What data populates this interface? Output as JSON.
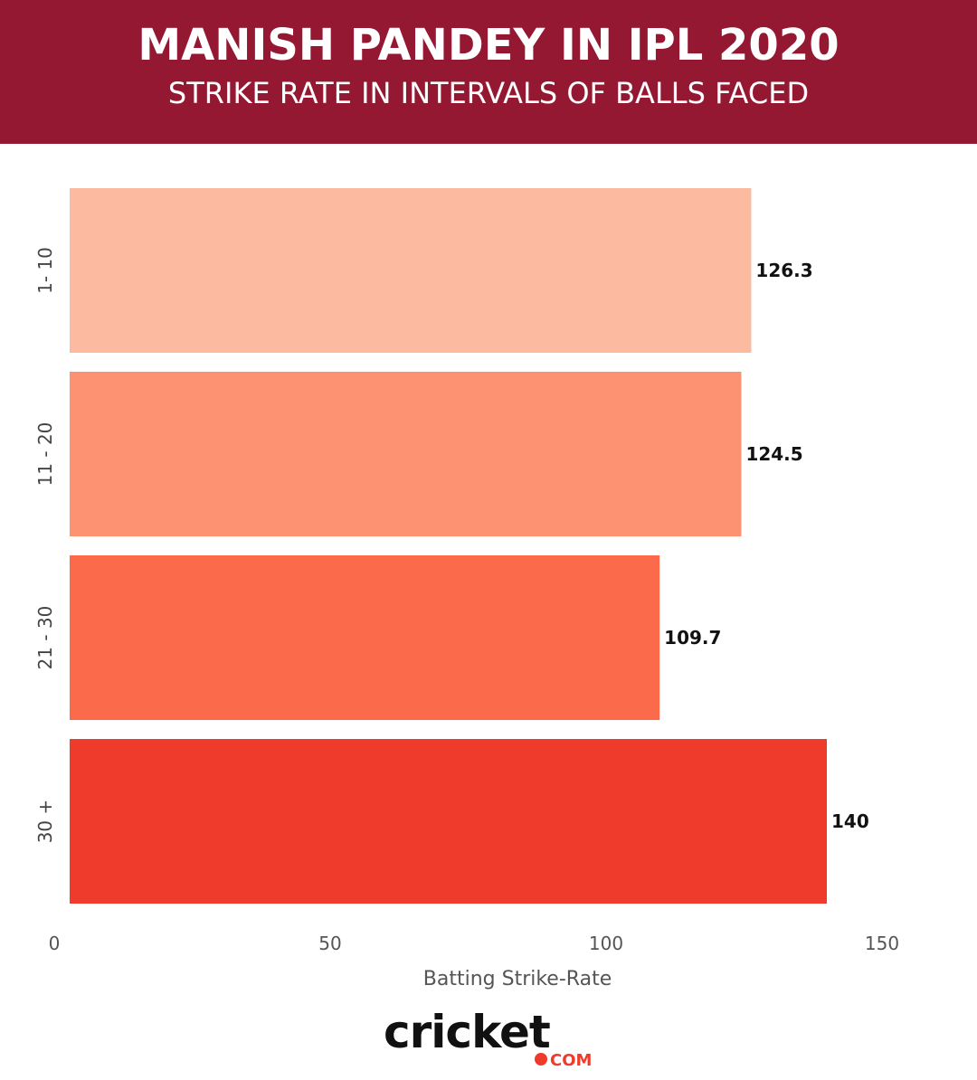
{
  "header": {
    "title": "MANISH PANDEY IN IPL 2020",
    "subtitle": "STRIKE RATE IN INTERVALS OF BALLS FACED"
  },
  "chart_data": {
    "type": "bar",
    "orientation": "horizontal",
    "categories": [
      "1- 10",
      "11 - 20",
      "21 - 30",
      "30 +"
    ],
    "values": [
      126.3,
      124.5,
      109.7,
      140
    ],
    "data_labels": [
      "126.3",
      "124.5",
      "109.7",
      "140"
    ],
    "xlabel": "Batting Strike-Rate",
    "ylabel": "",
    "xlim": [
      0,
      150
    ],
    "xticks": [
      0,
      50,
      100,
      150
    ],
    "grid": false,
    "colors": [
      "#fcbba1",
      "#fc9272",
      "#fb6a4a",
      "#ef3b2c"
    ]
  },
  "logo": {
    "word": "cricket",
    "suffix": "COM",
    "dot_color": "#ef3b2c"
  }
}
